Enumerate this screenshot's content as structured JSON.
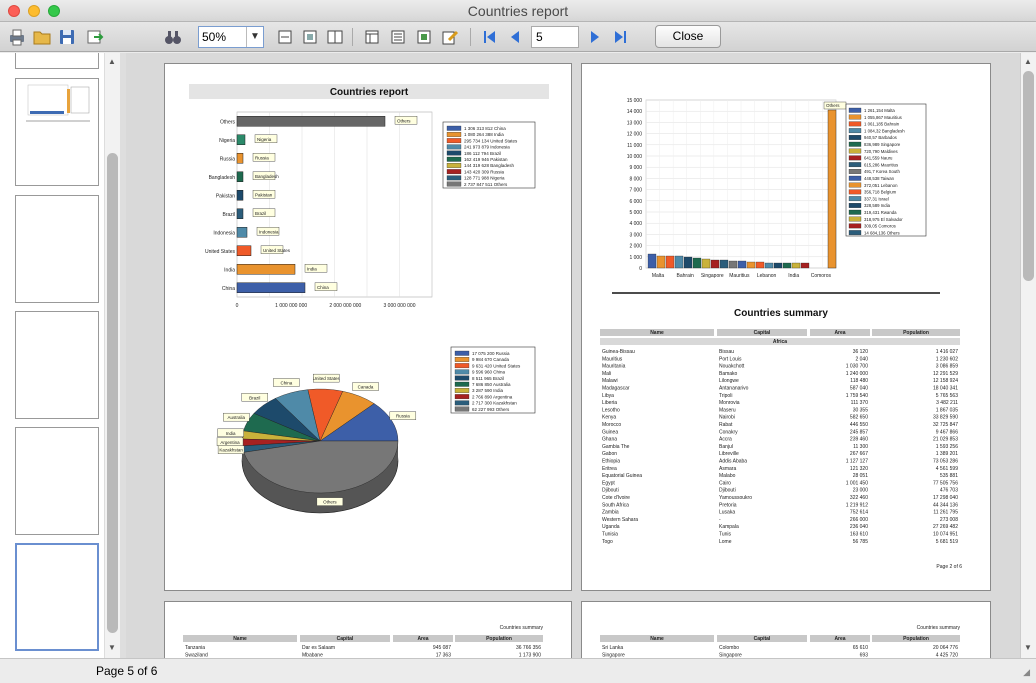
{
  "window": {
    "title": "Countries report"
  },
  "toolbar": {
    "zoom": "50%",
    "page_number": "5",
    "close_label": "Close"
  },
  "status": {
    "text": "Page 5 of 6"
  },
  "page_left": {
    "title": "Countries report",
    "bar_chart": {
      "categories": [
        "Others",
        "Nigeria",
        "Russia",
        "Bangladesh",
        "Pakistan",
        "Brazil",
        "Indonesia",
        "United States",
        "India",
        "China"
      ],
      "x_ticks": [
        "0",
        "1 000 000 000",
        "2 000 000 000",
        "3 000 000 000"
      ],
      "legend": [
        "1 306 313 812 China",
        "1 080 264 388 India",
        "295 734 134 United States",
        "241 973 879 Indonesia",
        "186 112 794 Brazil",
        "162 419 946 Pakistan",
        "144 319 628 Bangladesh",
        "143 420 309 Russia",
        "128 771 988 Nigeria",
        "2 737 847 511 Others"
      ]
    },
    "pie_chart": {
      "labels": [
        "Russia",
        "Canada",
        "United States",
        "China",
        "Brazil",
        "Australia",
        "India",
        "Argentina",
        "Kazakhstan",
        "Others"
      ],
      "legend": [
        "17 075 200 Russia",
        "9 984 670 Canada",
        "9 631 420 United States",
        "9 596 960 China",
        "8 511 965 Brazil",
        "7 686 850 Australia",
        "3 287 590 India",
        "2 766 890 Argentina",
        "2 717 300 Kazakhstan",
        "62 227 993 Others"
      ]
    }
  },
  "page_right": {
    "chart": {
      "y_ticks": [
        "15 000",
        "14 000",
        "13 000",
        "12 000",
        "11 000",
        "10 000",
        "9 000",
        "8 000",
        "7 000",
        "6 000",
        "5 000",
        "4 000",
        "3 000",
        "2 000",
        "1 000",
        "0"
      ],
      "x_labels": [
        "Malta",
        "Bahrain",
        "Singapore",
        "Mauritius",
        "Lebanon",
        "India",
        "Comoros"
      ],
      "others_label": "Others",
      "legend": [
        "1 261,154 Malta",
        "1 055,867 Mauritius",
        "1 061,185 Bahrain",
        "1 084,32 Bangladesh",
        "940,57 Barbados",
        "836,989 Singapore",
        "720,790 Maldives",
        "641,559 Nauru",
        "615,286 Mauritius",
        "491,7 Korea South",
        "448,538 Taiwan",
        "372,051 Lebanon",
        "356,718 Belgium",
        "337,31 Israel",
        "328,589 India",
        "319,431 Rwanda",
        "318,975 El Salvador",
        "309,05 Comoros",
        "14 684,136 Others"
      ]
    },
    "summary": {
      "title": "Countries summary",
      "columns": [
        "Name",
        "Capital",
        "Area",
        "Population"
      ],
      "group": "Africa",
      "rows": [
        [
          "Guinea-Bissau",
          "Bissau",
          "36 120",
          "1 416 027"
        ],
        [
          "Mauritius",
          "Port Louis",
          "2 040",
          "1 230 602"
        ],
        [
          "Mauritania",
          "Nouakchott",
          "1 030 700",
          "3 086 859"
        ],
        [
          "Mali",
          "Bamako",
          "1 240 000",
          "12 291 529"
        ],
        [
          "Malawi",
          "Lilongwe",
          "118 480",
          "12 158 924"
        ],
        [
          "Madagascar",
          "Antananarivo",
          "587 040",
          "18 040 341"
        ],
        [
          "Libya",
          "Tripoli",
          "1 759 540",
          "5 765 563"
        ],
        [
          "Liberia",
          "Monrovia",
          "111 370",
          "3 482 211"
        ],
        [
          "Lesotho",
          "Maseru",
          "30 355",
          "1 867 035"
        ],
        [
          "Kenya",
          "Nairobi",
          "582 650",
          "33 829 590"
        ],
        [
          "Morocco",
          "Rabat",
          "446 550",
          "32 725 847"
        ],
        [
          "Guinea",
          "Conakry",
          "245 857",
          "9 467 866"
        ],
        [
          "Ghana",
          "Accra",
          "239 460",
          "21 029 853"
        ],
        [
          "Gambia The",
          "Banjul",
          "11 300",
          "1 593 256"
        ],
        [
          "Gabon",
          "Libreville",
          "267 667",
          "1 389 201"
        ],
        [
          "Ethiopia",
          "Addis Ababa",
          "1 127 127",
          "73 053 286"
        ],
        [
          "Eritrea",
          "Asmara",
          "121 320",
          "4 561 599"
        ],
        [
          "Equatorial Guinea",
          "Malabo",
          "28 051",
          "535 881"
        ],
        [
          "Egypt",
          "Cairo",
          "1 001 450",
          "77 505 756"
        ],
        [
          "Djibouti",
          "Djibouti",
          "23 000",
          "476 703"
        ],
        [
          "Cote d'Ivoire",
          "Yamoussoukro",
          "322 460",
          "17 298 040"
        ],
        [
          "South Africa",
          "Pretoria",
          "1 219 912",
          "44 344 136"
        ],
        [
          "Zambia",
          "Lusaka",
          "752 614",
          "11 261 795"
        ],
        [
          "Western Sahara",
          "-",
          "266 000",
          "273 008"
        ],
        [
          "Uganda",
          "Kampala",
          "236 040",
          "27 269 482"
        ],
        [
          "Tunisia",
          "Tunis",
          "163 610",
          "10 074 951"
        ],
        [
          "Togo",
          "Lome",
          "56 785",
          "5 681 519"
        ]
      ],
      "footer": "Page 2 of 6"
    }
  },
  "page_bottom_left": {
    "header": "Countries summary",
    "columns": [
      "Name",
      "Capital",
      "Area",
      "Population"
    ],
    "rows": [
      [
        "Tanzania",
        "Dar es Salaam",
        "945 087",
        "36 766 356"
      ],
      [
        "Swaziland",
        "Mbabane",
        "17 363",
        "1 173 900"
      ]
    ]
  },
  "page_bottom_right": {
    "header": "Countries summary",
    "columns": [
      "Name",
      "Capital",
      "Area",
      "Population"
    ],
    "rows": [
      [
        "Sri Lanka",
        "Colombo",
        "65 610",
        "20 064 776"
      ],
      [
        "Singapore",
        "Singapore",
        "693",
        "4 425 720"
      ]
    ]
  },
  "colors": {
    "close": "#fc5f57",
    "minimize": "#fdbc2e",
    "zoom": "#34c84a",
    "nav_arrow": "#2f6fd6"
  }
}
